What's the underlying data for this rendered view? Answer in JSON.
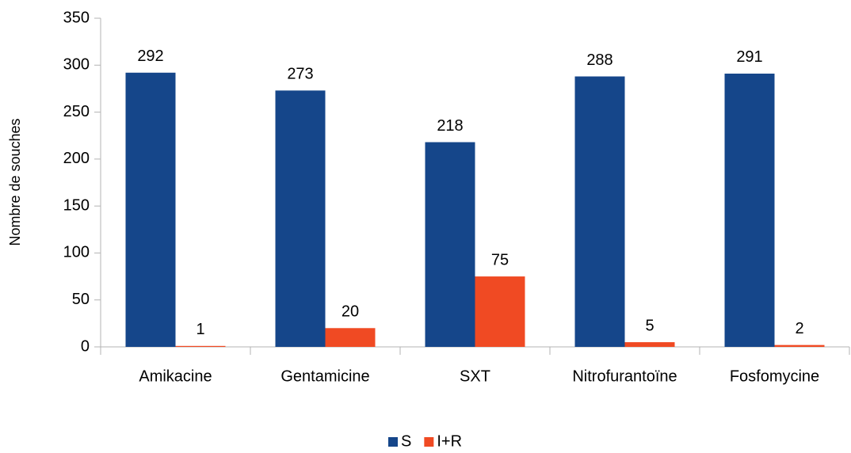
{
  "chart_data": {
    "type": "bar",
    "y_label": "Nombre de souches",
    "categories": [
      "Amikacine",
      "Gentamicine",
      "SXT",
      "Nitrofurantoïne",
      "Fosfomycine"
    ],
    "series": [
      {
        "name": "S",
        "color": "#15468a",
        "values": [
          292,
          273,
          218,
          288,
          291
        ]
      },
      {
        "name": "I+R",
        "color": "#f04a23",
        "values": [
          1,
          20,
          75,
          5,
          2
        ]
      }
    ],
    "ylim": [
      0,
      350
    ],
    "yticks": [
      0,
      50,
      100,
      150,
      200,
      250,
      300,
      350
    ],
    "grid": false,
    "legend": "bottom"
  }
}
